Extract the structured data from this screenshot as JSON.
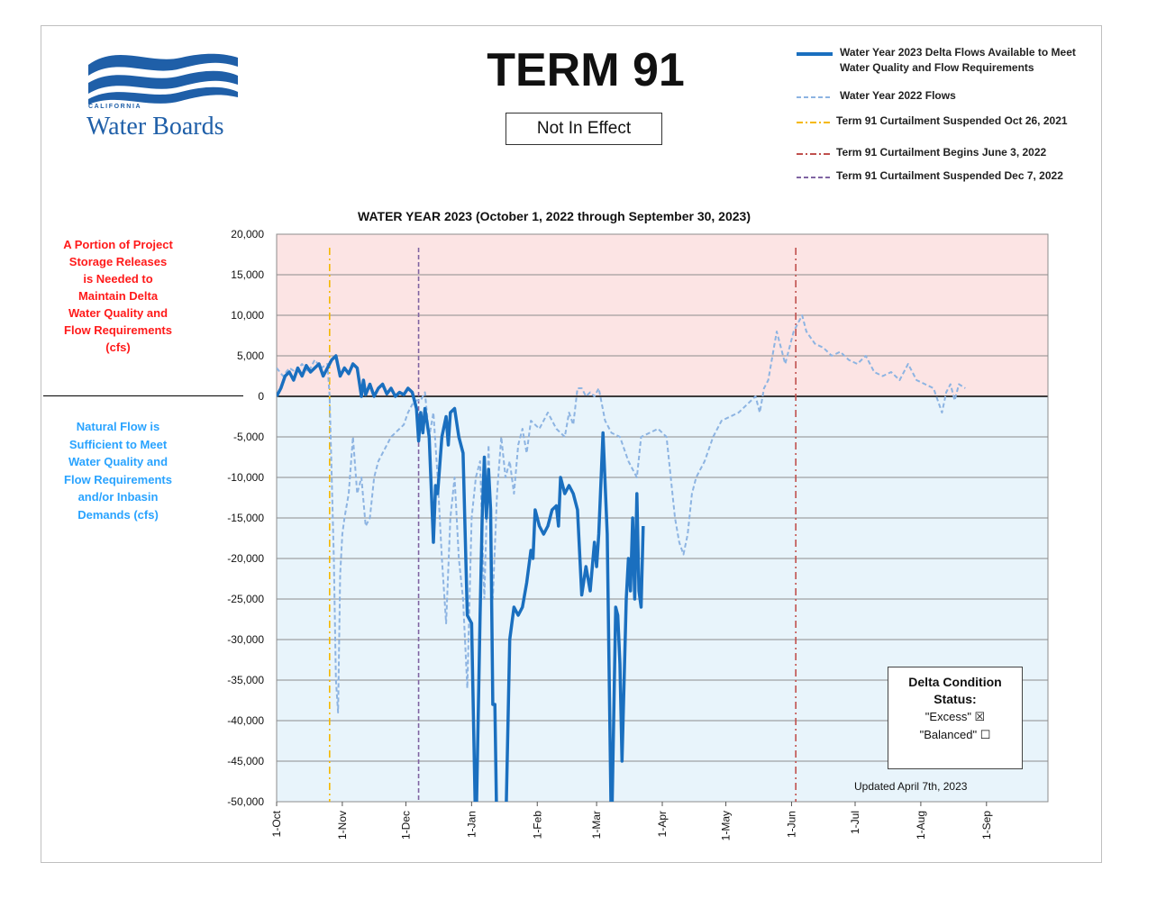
{
  "logo": {
    "top_text": "CALIFORNIA",
    "main_text": "Water Boards",
    "color": "#1f5fa8"
  },
  "header": {
    "title": "TERM 91",
    "status": "Not In Effect"
  },
  "legend": [
    {
      "label": "Water Year 2023 Delta Flows Available to Meet Water Quality and Flow Requirements",
      "color": "#1a6fbf",
      "style": "solid"
    },
    {
      "label": "Water Year 2022 Flows",
      "color": "#8db4e2",
      "style": "dashed"
    },
    {
      "label": "Term 91 Curtailment Suspended Oct 26, 2021",
      "color": "#f5b800",
      "style": "dash-dot"
    },
    {
      "label": "Term 91 Curtailment Begins June 3, 2022",
      "color": "#c0504d",
      "style": "dash-dot"
    },
    {
      "label": "Term 91 Curtailment Suspended Dec 7, 2022",
      "color": "#8064a2",
      "style": "dashed"
    }
  ],
  "side_labels": {
    "deficit": "A Portion of Project Storage Releases is Needed to Maintain Delta Water Quality and Flow Requirements (cfs)",
    "surplus": "Natural Flow is Sufficient to Meet Water Quality  and Flow Requirements and/or Inbasin Demands  (cfs)"
  },
  "status_panel": {
    "title": "Delta Condition Status:",
    "excess": "\"Excess\" ☒",
    "balanced": "\"Balanced\" ☐"
  },
  "updated": "Updated April 7th, 2023",
  "colors": {
    "positive_zone": "#fce4e4",
    "negative_zone": "#e8f4fb",
    "deficit_text": "#ff1a1a",
    "surplus_text": "#29a3ff"
  },
  "chart_data": {
    "type": "line",
    "title": "WATER YEAR 2023 (October 1, 2022 through September 30, 2023)",
    "ylim": [
      -50000,
      20000
    ],
    "xlim": [
      0,
      364
    ],
    "y_ticks": [
      20000,
      15000,
      10000,
      5000,
      0,
      -5000,
      -10000,
      -15000,
      -20000,
      -25000,
      -30000,
      -35000,
      -40000,
      -45000,
      -50000
    ],
    "y_tick_labels": [
      "20,000",
      "15,000",
      "10,000",
      "5,000",
      "0",
      "-5,000",
      "-10,000",
      "-15,000",
      "-20,000",
      "-25,000",
      "-30,000",
      "-35,000",
      "-40,000",
      "-45,000",
      "-50,000"
    ],
    "x_ticks": [
      0,
      31,
      61,
      92,
      123,
      151,
      182,
      212,
      243,
      273,
      304,
      335
    ],
    "x_tick_labels": [
      "1-Oct",
      "1-Nov",
      "1-Dec",
      "1-Jan",
      "1-Feb",
      "1-Mar",
      "1-Apr",
      "1-May",
      "1-Jun",
      "1-Jul",
      "1-Aug",
      "1-Sep"
    ],
    "grid": true,
    "vlines": [
      {
        "x": 25,
        "color": "#f5b800",
        "style": "dash-dot"
      },
      {
        "x": 67,
        "color": "#8064a2",
        "style": "dashed"
      },
      {
        "x": 245,
        "color": "#c0504d",
        "style": "dash-dot"
      }
    ],
    "series": [
      {
        "name": "Water Year 2023 Delta Flows Available to Meet Water Quality and Flow Requirements",
        "color": "#1a6fbf",
        "style": "solid",
        "points": [
          [
            0,
            0
          ],
          [
            2,
            1000
          ],
          [
            4,
            2500
          ],
          [
            6,
            3000
          ],
          [
            8,
            2000
          ],
          [
            10,
            3500
          ],
          [
            12,
            2500
          ],
          [
            14,
            3800
          ],
          [
            16,
            3000
          ],
          [
            18,
            3500
          ],
          [
            20,
            4000
          ],
          [
            22,
            2500
          ],
          [
            24,
            3500
          ],
          [
            26,
            4500
          ],
          [
            28,
            5000
          ],
          [
            30,
            2500
          ],
          [
            32,
            3500
          ],
          [
            34,
            2800
          ],
          [
            36,
            4000
          ],
          [
            38,
            3500
          ],
          [
            40,
            0
          ],
          [
            41,
            2000
          ],
          [
            42,
            200
          ],
          [
            44,
            1500
          ],
          [
            46,
            0
          ],
          [
            48,
            1000
          ],
          [
            50,
            1500
          ],
          [
            52,
            300
          ],
          [
            54,
            1000
          ],
          [
            56,
            0
          ],
          [
            58,
            500
          ],
          [
            60,
            200
          ],
          [
            62,
            1000
          ],
          [
            64,
            500
          ],
          [
            66,
            -1500
          ],
          [
            67,
            -5500
          ],
          [
            68,
            -2000
          ],
          [
            69,
            -4500
          ],
          [
            70,
            -1500
          ],
          [
            72,
            -5000
          ],
          [
            74,
            -18000
          ],
          [
            75,
            -11000
          ],
          [
            76,
            -12000
          ],
          [
            78,
            -5000
          ],
          [
            80,
            -2500
          ],
          [
            81,
            -6000
          ],
          [
            82,
            -2000
          ],
          [
            84,
            -1500
          ],
          [
            86,
            -5000
          ],
          [
            88,
            -7000
          ],
          [
            90,
            -27000
          ],
          [
            92,
            -28000
          ],
          [
            94,
            -55000
          ],
          [
            96,
            -27000
          ],
          [
            97,
            -15000
          ],
          [
            98,
            -7500
          ],
          [
            99,
            -15000
          ],
          [
            100,
            -9000
          ],
          [
            101,
            -14000
          ],
          [
            102,
            -38000
          ],
          [
            103,
            -38000
          ],
          [
            104,
            -55000
          ],
          [
            108,
            -55000
          ],
          [
            110,
            -30000
          ],
          [
            112,
            -26000
          ],
          [
            114,
            -27000
          ],
          [
            116,
            -26000
          ],
          [
            118,
            -23000
          ],
          [
            120,
            -19000
          ],
          [
            121,
            -20000
          ],
          [
            122,
            -14000
          ],
          [
            124,
            -16000
          ],
          [
            126,
            -17000
          ],
          [
            128,
            -16000
          ],
          [
            130,
            -14000
          ],
          [
            132,
            -13500
          ],
          [
            133,
            -16000
          ],
          [
            134,
            -10000
          ],
          [
            136,
            -12000
          ],
          [
            138,
            -11000
          ],
          [
            140,
            -12000
          ],
          [
            142,
            -14000
          ],
          [
            144,
            -24500
          ],
          [
            146,
            -21000
          ],
          [
            148,
            -24000
          ],
          [
            150,
            -18000
          ],
          [
            151,
            -21000
          ],
          [
            152,
            -17000
          ],
          [
            154,
            -4500
          ],
          [
            156,
            -17000
          ],
          [
            158,
            -55000
          ],
          [
            160,
            -26000
          ],
          [
            161,
            -27000
          ],
          [
            162,
            -33000
          ],
          [
            163,
            -45000
          ],
          [
            165,
            -25000
          ],
          [
            166,
            -20000
          ],
          [
            167,
            -24000
          ],
          [
            168,
            -15000
          ],
          [
            169,
            -25000
          ],
          [
            170,
            -12000
          ],
          [
            171,
            -24000
          ],
          [
            172,
            -26000
          ],
          [
            173,
            -16000
          ]
        ]
      },
      {
        "name": "Water Year 2022 Flows",
        "color": "#8db4e2",
        "style": "dashed",
        "points": [
          [
            0,
            3500
          ],
          [
            3,
            2500
          ],
          [
            6,
            3500
          ],
          [
            9,
            3000
          ],
          [
            12,
            4000
          ],
          [
            15,
            3000
          ],
          [
            18,
            4500
          ],
          [
            21,
            3500
          ],
          [
            24,
            4000
          ],
          [
            25,
            0
          ],
          [
            27,
            -20000
          ],
          [
            28,
            -35000
          ],
          [
            29,
            -39000
          ],
          [
            30,
            -22000
          ],
          [
            31,
            -17000
          ],
          [
            32,
            -15000
          ],
          [
            34,
            -12000
          ],
          [
            36,
            -5000
          ],
          [
            38,
            -12000
          ],
          [
            40,
            -10000
          ],
          [
            42,
            -16000
          ],
          [
            44,
            -15000
          ],
          [
            46,
            -10000
          ],
          [
            48,
            -8000
          ],
          [
            50,
            -7000
          ],
          [
            52,
            -6000
          ],
          [
            54,
            -5000
          ],
          [
            56,
            -4500
          ],
          [
            58,
            -4000
          ],
          [
            60,
            -3500
          ],
          [
            62,
            -2000
          ],
          [
            64,
            -1000
          ],
          [
            66,
            -500
          ],
          [
            68,
            -500
          ],
          [
            70,
            500
          ],
          [
            72,
            -5000
          ],
          [
            74,
            -2000
          ],
          [
            76,
            -10000
          ],
          [
            78,
            -20000
          ],
          [
            80,
            -28000
          ],
          [
            82,
            -15000
          ],
          [
            84,
            -10000
          ],
          [
            86,
            -20000
          ],
          [
            88,
            -25000
          ],
          [
            90,
            -36000
          ],
          [
            92,
            -15000
          ],
          [
            94,
            -10000
          ],
          [
            96,
            -8000
          ],
          [
            98,
            -25000
          ],
          [
            100,
            -6000
          ],
          [
            102,
            -25000
          ],
          [
            104,
            -12000
          ],
          [
            106,
            -5000
          ],
          [
            108,
            -10000
          ],
          [
            110,
            -8000
          ],
          [
            112,
            -12000
          ],
          [
            114,
            -6000
          ],
          [
            116,
            -4000
          ],
          [
            118,
            -7000
          ],
          [
            120,
            -3000
          ],
          [
            124,
            -4000
          ],
          [
            128,
            -2000
          ],
          [
            132,
            -4000
          ],
          [
            136,
            -5000
          ],
          [
            138,
            -2000
          ],
          [
            140,
            -3500
          ],
          [
            142,
            1000
          ],
          [
            144,
            1000
          ],
          [
            146,
            0
          ],
          [
            148,
            500
          ],
          [
            150,
            0
          ],
          [
            152,
            1000
          ],
          [
            155,
            -3000
          ],
          [
            158,
            -4500
          ],
          [
            162,
            -5000
          ],
          [
            166,
            -8000
          ],
          [
            170,
            -10000
          ],
          [
            172,
            -5000
          ],
          [
            176,
            -4500
          ],
          [
            180,
            -4000
          ],
          [
            184,
            -5000
          ],
          [
            186,
            -10000
          ],
          [
            188,
            -15000
          ],
          [
            190,
            -18000
          ],
          [
            192,
            -19500
          ],
          [
            194,
            -17000
          ],
          [
            196,
            -12000
          ],
          [
            198,
            -10000
          ],
          [
            202,
            -8000
          ],
          [
            206,
            -5000
          ],
          [
            210,
            -3000
          ],
          [
            214,
            -2500
          ],
          [
            218,
            -2000
          ],
          [
            222,
            -1000
          ],
          [
            226,
            0
          ],
          [
            228,
            -2000
          ],
          [
            230,
            1000
          ],
          [
            232,
            2000
          ],
          [
            234,
            5000
          ],
          [
            236,
            8000
          ],
          [
            238,
            6000
          ],
          [
            240,
            4000
          ],
          [
            242,
            6000
          ],
          [
            244,
            8000
          ],
          [
            246,
            9000
          ],
          [
            248,
            10000
          ],
          [
            250,
            8000
          ],
          [
            254,
            6500
          ],
          [
            258,
            6000
          ],
          [
            262,
            5000
          ],
          [
            266,
            5500
          ],
          [
            270,
            4500
          ],
          [
            274,
            4000
          ],
          [
            278,
            5000
          ],
          [
            282,
            3000
          ],
          [
            286,
            2500
          ],
          [
            290,
            3000
          ],
          [
            294,
            2000
          ],
          [
            298,
            4000
          ],
          [
            302,
            2000
          ],
          [
            306,
            1500
          ],
          [
            310,
            1000
          ],
          [
            314,
            -2000
          ],
          [
            316,
            500
          ],
          [
            318,
            1500
          ],
          [
            320,
            -500
          ],
          [
            322,
            1500
          ],
          [
            325,
            1000
          ]
        ]
      }
    ]
  }
}
